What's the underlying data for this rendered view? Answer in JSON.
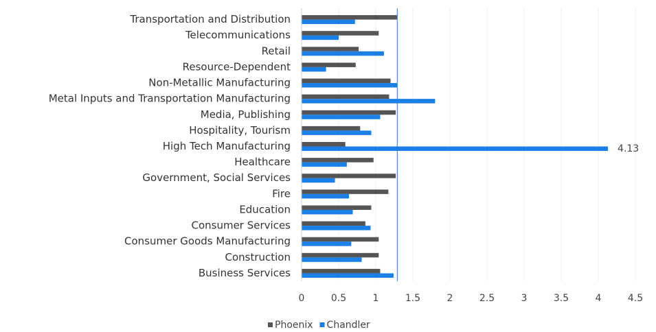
{
  "chart_data": {
    "type": "hbar",
    "categories": [
      "Transportation and Distribution",
      "Telecommunications",
      "Retail",
      "Resource-Dependent",
      "Non-Metallic Manufacturing",
      "Metal Inputs and Transportation Manufacturing",
      "Media, Publishing",
      "Hospitality, Tourism",
      "High Tech Manufacturing",
      "Healthcare",
      "Government, Social Services",
      "Fire",
      "Education",
      "Consumer Services",
      "Consumer Goods Manufacturing",
      "Construction",
      "Business Services"
    ],
    "series": [
      {
        "name": "Phoenix",
        "color": "#555555",
        "values": [
          1.29,
          1.04,
          0.77,
          0.73,
          1.2,
          1.18,
          1.27,
          0.79,
          0.59,
          0.97,
          1.27,
          1.17,
          0.94,
          0.86,
          1.04,
          1.04,
          1.06
        ]
      },
      {
        "name": "Chandler",
        "color": "#1a7fe6",
        "values": [
          0.72,
          0.5,
          1.11,
          0.33,
          1.29,
          1.8,
          1.06,
          0.94,
          4.13,
          0.61,
          0.45,
          0.64,
          0.69,
          0.93,
          0.67,
          0.81,
          1.24
        ],
        "value_labels": [
          null,
          null,
          null,
          null,
          null,
          null,
          null,
          null,
          "4.13",
          null,
          null,
          null,
          null,
          null,
          null,
          null,
          null
        ]
      }
    ],
    "xlim": [
      0,
      4.5
    ],
    "xticks": [
      0,
      0.5,
      1,
      1.5,
      2,
      2.5,
      3,
      3.5,
      4,
      4.5
    ],
    "reference_line": {
      "value": 1.29,
      "color": "#1a7fe6"
    },
    "grid": true,
    "legend": "bottom"
  }
}
